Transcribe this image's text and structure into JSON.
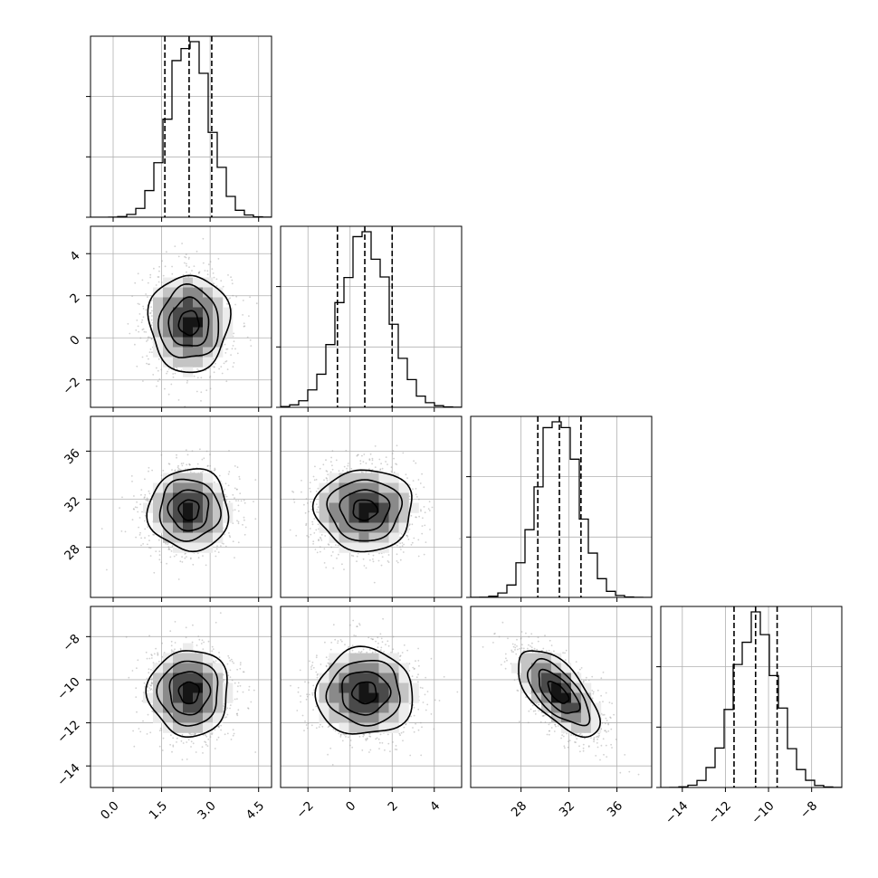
{
  "chart_data": {
    "type": "corner",
    "parameters": [
      {
        "key": "p0",
        "range": [
          -0.7,
          4.9
        ],
        "ticks": [
          0.0,
          1.5,
          3.0,
          4.5
        ],
        "tick_labels": [
          "0.0",
          "1.5",
          "3.0",
          "4.5"
        ],
        "quantiles": [
          1.6,
          2.35,
          3.05
        ],
        "mean": 2.35,
        "sd": 0.62
      },
      {
        "key": "p1",
        "range": [
          -3.3,
          5.3
        ],
        "ticks": [
          -2,
          0,
          2,
          4
        ],
        "tick_labels": [
          "−2",
          "0",
          "2",
          "4"
        ],
        "quantiles": [
          -0.6,
          0.7,
          2.0
        ],
        "mean": 0.7,
        "sd": 1.15
      },
      {
        "key": "p2",
        "range": [
          23.8,
          38.9
        ],
        "ticks": [
          28,
          32,
          36
        ],
        "tick_labels": [
          "28",
          "32",
          "36"
        ],
        "quantiles": [
          29.4,
          31.2,
          33.0
        ],
        "mean": 31.1,
        "sd": 1.7
      },
      {
        "key": "p3",
        "range": [
          -15.0,
          -6.6
        ],
        "ticks": [
          -14,
          -12,
          -10,
          -8
        ],
        "tick_labels": [
          "−14",
          "−12",
          "−10",
          "−8"
        ],
        "quantiles": [
          -11.6,
          -10.6,
          -9.6
        ],
        "mean": -10.6,
        "sd": 1.0
      }
    ],
    "pair_correlations": [
      {
        "row": 1,
        "col": 0,
        "rho": 0.0
      },
      {
        "row": 2,
        "col": 0,
        "rho": 0.0
      },
      {
        "row": 2,
        "col": 1,
        "rho": 0.0
      },
      {
        "row": 3,
        "col": 0,
        "rho": 0.0
      },
      {
        "row": 3,
        "col": 1,
        "rho": 0.0
      },
      {
        "row": 3,
        "col": 2,
        "rho": -0.65
      }
    ],
    "histogram_bins": 20,
    "contour_levels": [
      "0.5σ",
      "1σ",
      "1.5σ",
      "2σ"
    ],
    "grid": true,
    "colors": {
      "line": "#000000",
      "points": "#9a9a9a",
      "grid": "#b0b0b0"
    }
  }
}
